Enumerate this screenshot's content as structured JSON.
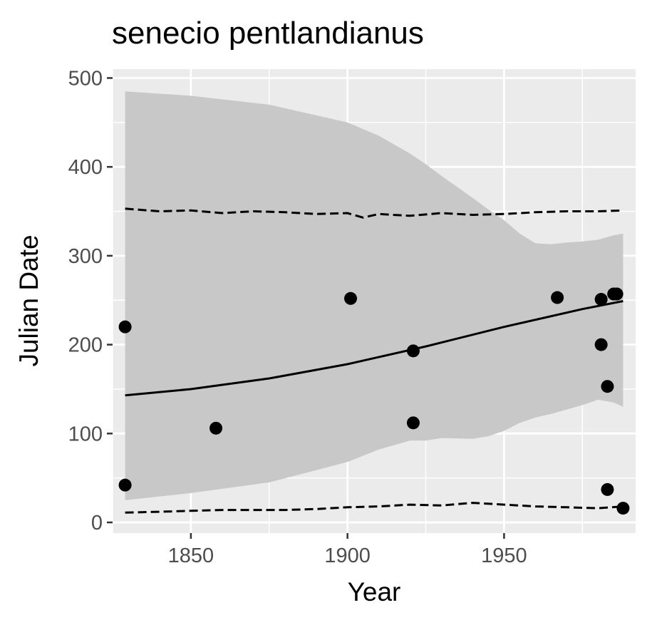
{
  "chart_data": {
    "type": "scatter",
    "title": "senecio pentlandianus",
    "xlabel": "Year",
    "ylabel": "Julian Date",
    "xlim": [
      1825,
      1992
    ],
    "ylim": [
      -12,
      510
    ],
    "x_ticks": [
      1850,
      1900,
      1950
    ],
    "y_ticks": [
      0,
      100,
      200,
      300,
      400,
      500
    ],
    "grid": true,
    "legend": "none",
    "colors": {
      "panel_background": "#ebebeb",
      "grid": "#ffffff",
      "ribbon": "#c8c8c8",
      "points": "#000000",
      "lines": "#000000"
    },
    "points": [
      {
        "x": 1829,
        "y": 220
      },
      {
        "x": 1829,
        "y": 42
      },
      {
        "x": 1858,
        "y": 106
      },
      {
        "x": 1901,
        "y": 252
      },
      {
        "x": 1921,
        "y": 193
      },
      {
        "x": 1921,
        "y": 112
      },
      {
        "x": 1967,
        "y": 253
      },
      {
        "x": 1981,
        "y": 251
      },
      {
        "x": 1981,
        "y": 200
      },
      {
        "x": 1983,
        "y": 153
      },
      {
        "x": 1983,
        "y": 37
      },
      {
        "x": 1985,
        "y": 257
      },
      {
        "x": 1986,
        "y": 257
      },
      {
        "x": 1988,
        "y": 16
      }
    ],
    "fit_line": {
      "x": [
        1829,
        1850,
        1875,
        1900,
        1925,
        1950,
        1975,
        1988
      ],
      "y": [
        143,
        150,
        162,
        178,
        198,
        220,
        240,
        249
      ]
    },
    "ribbon": {
      "x": [
        1829,
        1850,
        1875,
        1900,
        1910,
        1920,
        1925,
        1930,
        1940,
        1945,
        1950,
        1955,
        1960,
        1965,
        1970,
        1975,
        1980,
        1985,
        1988
      ],
      "upper": [
        485,
        480,
        470,
        450,
        435,
        415,
        403,
        390,
        365,
        352,
        340,
        325,
        314,
        313,
        315,
        316,
        318,
        323,
        325
      ],
      "lower": [
        25,
        33,
        45,
        68,
        82,
        92,
        92,
        95,
        94,
        97,
        103,
        112,
        118,
        122,
        127,
        132,
        138,
        135,
        130
      ]
    },
    "upper_dashed": {
      "x": [
        1829,
        1840,
        1850,
        1860,
        1870,
        1880,
        1890,
        1900,
        1905,
        1910,
        1920,
        1930,
        1940,
        1950,
        1960,
        1970,
        1980,
        1988
      ],
      "y": [
        353,
        350,
        351,
        348,
        350,
        349,
        347,
        348,
        343,
        347,
        345,
        348,
        346,
        347,
        349,
        350,
        350,
        351
      ]
    },
    "lower_dashed": {
      "x": [
        1829,
        1840,
        1850,
        1860,
        1870,
        1880,
        1890,
        1900,
        1910,
        1920,
        1930,
        1940,
        1950,
        1960,
        1970,
        1980,
        1988
      ],
      "y": [
        11,
        12,
        13,
        14,
        14,
        14,
        15,
        17,
        18,
        20,
        19,
        22,
        20,
        18,
        17,
        16,
        18
      ]
    }
  }
}
